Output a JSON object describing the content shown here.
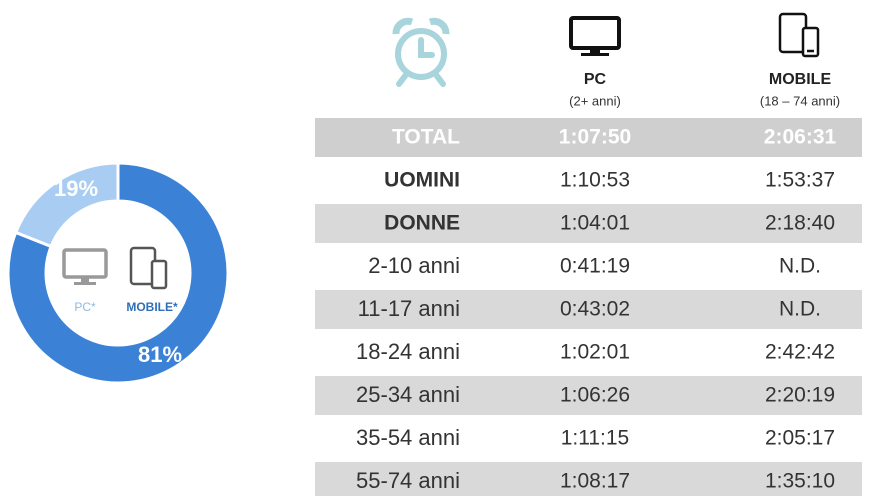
{
  "chart_data": {
    "type": "donut",
    "categories": [
      "PC*",
      "MOBILE*"
    ],
    "values": [
      19,
      81
    ],
    "value_labels": [
      "19%",
      "81%"
    ],
    "colors": [
      "#a9cdf2",
      "#3b82d6"
    ]
  },
  "table": {
    "header": [
      {
        "title": "PC",
        "subtitle": "(2+ anni)"
      },
      {
        "title": "MOBILE",
        "subtitle": "(18 – 74 anni)"
      }
    ],
    "rows": [
      [
        "TOTAL",
        "1:07:50",
        "2:06:31"
      ],
      [
        "UOMINI",
        "1:10:53",
        "1:53:37"
      ],
      [
        "DONNE",
        "1:04:01",
        "2:18:40"
      ],
      [
        "2-10 anni",
        "0:41:19",
        "N.D."
      ],
      [
        "11-17 anni",
        "0:43:02",
        "N.D."
      ],
      [
        "18-24 anni",
        "1:02:01",
        "2:42:42"
      ],
      [
        "25-34 anni",
        "1:06:26",
        "2:20:19"
      ],
      [
        "35-54 anni",
        "1:11:15",
        "2:05:17"
      ],
      [
        "55-74 anni",
        "1:08:17",
        "1:35:10"
      ]
    ]
  }
}
